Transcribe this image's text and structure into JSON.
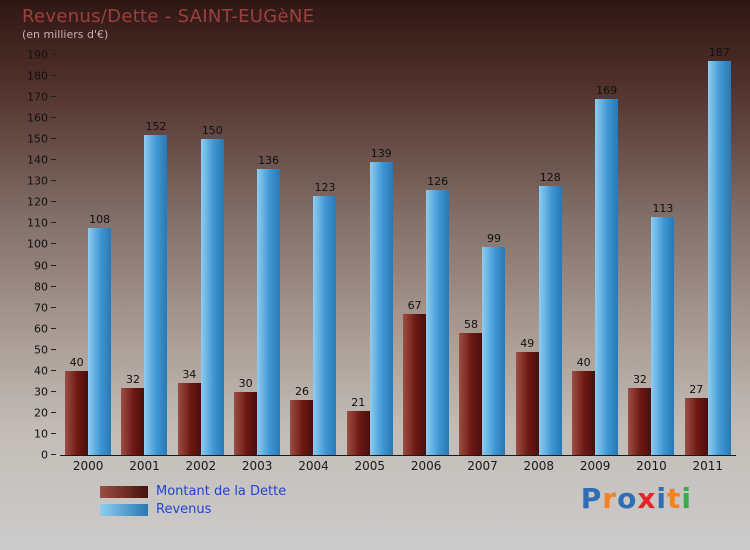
{
  "chart_data": {
    "type": "bar",
    "title": "Revenus/Dette - SAINT-EUGèNE",
    "subtitle": "(en milliers d'€)",
    "categories": [
      "2000",
      "2001",
      "2002",
      "2003",
      "2004",
      "2005",
      "2006",
      "2007",
      "2008",
      "2009",
      "2010",
      "2011"
    ],
    "series": [
      {
        "name": "Montant de la Dette",
        "color": "#6e1713",
        "gradient": [
          "#9c4f43",
          "#6e1713",
          "#45100c"
        ],
        "values": [
          40,
          32,
          34,
          30,
          26,
          21,
          67,
          58,
          49,
          40,
          32,
          27
        ]
      },
      {
        "name": "Revenus",
        "color": "#3d9ad8",
        "gradient": [
          "#8ecdf0",
          "#3f97d3",
          "#2878b4"
        ],
        "values": [
          108,
          152,
          150,
          136,
          123,
          139,
          126,
          99,
          128,
          169,
          113,
          187
        ]
      }
    ],
    "xlabel": "",
    "ylabel": "",
    "ylim": [
      0,
      190
    ],
    "ytick_step": 10,
    "grid": false,
    "legend_position": "bottom-left"
  },
  "legend_text_color": "#2244cc",
  "logo": {
    "text": "Proxiti",
    "letters": [
      {
        "char": "P",
        "color": "#2f6db5"
      },
      {
        "char": "r",
        "color": "#f58220"
      },
      {
        "char": "o",
        "color": "#2f6db5"
      },
      {
        "char": "x",
        "color": "#e3262a"
      },
      {
        "char": "i",
        "color": "#2f6db5"
      },
      {
        "char": "t",
        "color": "#f58220"
      },
      {
        "char": "i",
        "color": "#3aaa4a"
      }
    ]
  }
}
